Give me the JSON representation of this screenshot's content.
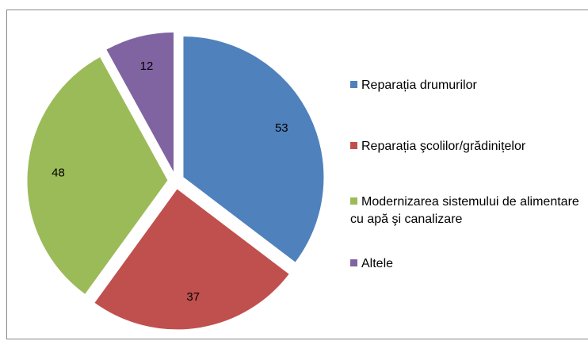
{
  "chart_data": {
    "type": "pie",
    "categories": [
      "Reparația drumurilor",
      "Reparația şcolilor/grădinițelor",
      "Modernizarea sistemului de alimentare cu apă şi canalizare",
      "Altele"
    ],
    "values": [
      53,
      37,
      48,
      12
    ],
    "colors": [
      "#4f81bd",
      "#c0504d",
      "#9bbb59",
      "#8064a2"
    ],
    "legend": "right"
  }
}
